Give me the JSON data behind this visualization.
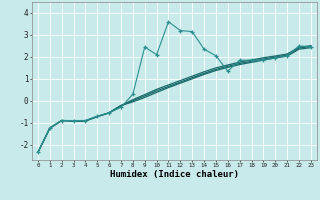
{
  "title": "",
  "xlabel": "Humidex (Indice chaleur)",
  "xlim": [
    -0.5,
    23.5
  ],
  "ylim": [
    -2.7,
    4.5
  ],
  "xticks": [
    0,
    1,
    2,
    3,
    4,
    5,
    6,
    7,
    8,
    9,
    10,
    11,
    12,
    13,
    14,
    15,
    16,
    17,
    18,
    19,
    20,
    21,
    22,
    23
  ],
  "yticks": [
    -2,
    -1,
    0,
    1,
    2,
    3,
    4
  ],
  "bg_color": "#c8eaea",
  "line_color_dark": "#1a6b6b",
  "line_color_wavy": "#2a9090",
  "series1_x": [
    0,
    1,
    2,
    3,
    4,
    5,
    6,
    7,
    8,
    9,
    10,
    11,
    12,
    13,
    14,
    15,
    16,
    17,
    18,
    19,
    20,
    21,
    22,
    23
  ],
  "series1_y": [
    -2.35,
    -1.25,
    -0.9,
    -0.9,
    -0.9,
    -0.7,
    -0.55,
    -0.3,
    0.3,
    2.45,
    2.1,
    3.6,
    3.2,
    3.15,
    2.35,
    2.05,
    1.35,
    1.85,
    1.85,
    1.85,
    1.95,
    2.05,
    2.5,
    2.45
  ],
  "series2_x": [
    0,
    1,
    2,
    3,
    4,
    5,
    6,
    7,
    8,
    9,
    10,
    11,
    12,
    13,
    14,
    15,
    16,
    17,
    18,
    19,
    20,
    21,
    22,
    23
  ],
  "series2_y": [
    -2.35,
    -1.25,
    -0.9,
    -0.92,
    -0.92,
    -0.72,
    -0.55,
    -0.22,
    -0.05,
    0.15,
    0.38,
    0.6,
    0.8,
    1.0,
    1.2,
    1.38,
    1.52,
    1.65,
    1.75,
    1.85,
    1.95,
    2.03,
    2.35,
    2.42
  ],
  "series3_x": [
    0,
    1,
    2,
    3,
    4,
    5,
    6,
    7,
    8,
    9,
    10,
    11,
    12,
    13,
    14,
    15,
    16,
    17,
    18,
    19,
    20,
    21,
    22,
    23
  ],
  "series3_y": [
    -2.35,
    -1.25,
    -0.9,
    -0.92,
    -0.92,
    -0.72,
    -0.55,
    -0.22,
    0.0,
    0.22,
    0.45,
    0.65,
    0.85,
    1.05,
    1.25,
    1.43,
    1.57,
    1.7,
    1.8,
    1.9,
    1.99,
    2.08,
    2.4,
    2.47
  ],
  "series4_x": [
    0,
    1,
    2,
    3,
    4,
    5,
    6,
    7,
    8,
    9,
    10,
    11,
    12,
    13,
    14,
    15,
    16,
    17,
    18,
    19,
    20,
    21,
    22,
    23
  ],
  "series4_y": [
    -2.35,
    -1.25,
    -0.9,
    -0.92,
    -0.92,
    -0.72,
    -0.55,
    -0.22,
    0.05,
    0.28,
    0.52,
    0.72,
    0.92,
    1.12,
    1.32,
    1.5,
    1.63,
    1.76,
    1.86,
    1.96,
    2.04,
    2.13,
    2.44,
    2.51
  ]
}
